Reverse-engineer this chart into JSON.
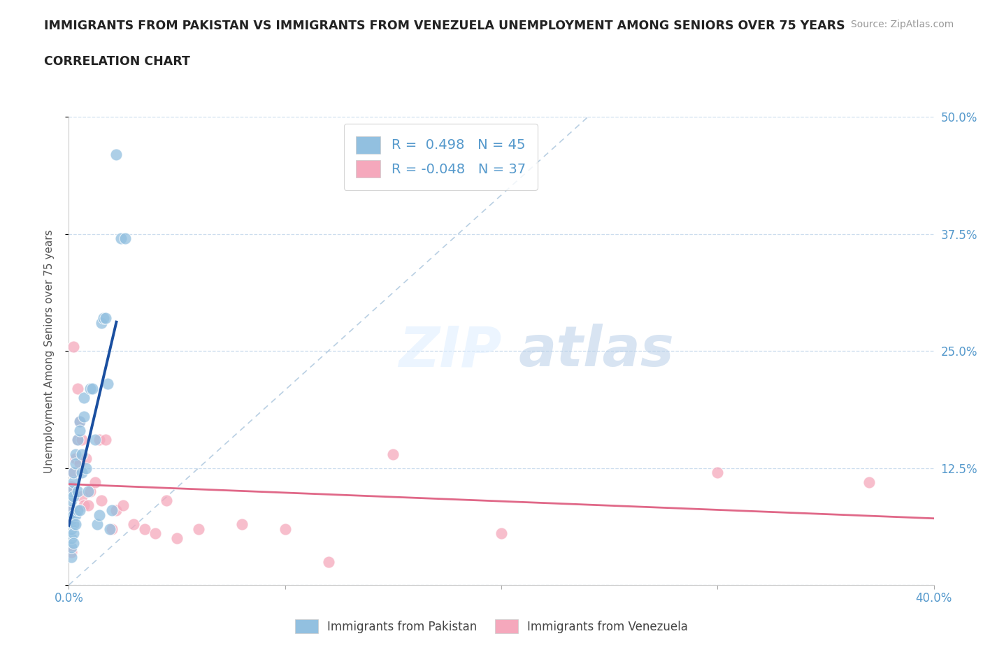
{
  "title_line1": "IMMIGRANTS FROM PAKISTAN VS IMMIGRANTS FROM VENEZUELA UNEMPLOYMENT AMONG SENIORS OVER 75 YEARS",
  "title_line2": "CORRELATION CHART",
  "source": "Source: ZipAtlas.com",
  "ylabel": "Unemployment Among Seniors over 75 years",
  "xlim": [
    0.0,
    0.4
  ],
  "ylim": [
    0.0,
    0.5
  ],
  "R_pakistan": 0.498,
  "N_pakistan": 45,
  "R_venezuela": -0.048,
  "N_venezuela": 37,
  "pakistan_color": "#92c0e0",
  "venezuela_color": "#f5a8bc",
  "pakistan_line_color": "#1a4fa0",
  "venezuela_line_color": "#e06888",
  "diagonal_color": "#a8c4dc",
  "tick_color": "#5599cc",
  "pakistan_x": [
    0.001,
    0.001,
    0.001,
    0.001,
    0.001,
    0.001,
    0.001,
    0.001,
    0.002,
    0.002,
    0.002,
    0.002,
    0.002,
    0.002,
    0.002,
    0.003,
    0.003,
    0.003,
    0.003,
    0.004,
    0.004,
    0.004,
    0.005,
    0.005,
    0.005,
    0.006,
    0.006,
    0.007,
    0.007,
    0.008,
    0.009,
    0.01,
    0.011,
    0.012,
    0.013,
    0.014,
    0.015,
    0.016,
    0.017,
    0.018,
    0.019,
    0.02,
    0.022,
    0.024,
    0.026
  ],
  "pakistan_y": [
    0.03,
    0.04,
    0.05,
    0.06,
    0.07,
    0.08,
    0.09,
    0.1,
    0.11,
    0.12,
    0.095,
    0.075,
    0.065,
    0.055,
    0.045,
    0.14,
    0.13,
    0.075,
    0.065,
    0.08,
    0.1,
    0.155,
    0.175,
    0.165,
    0.08,
    0.14,
    0.12,
    0.18,
    0.2,
    0.125,
    0.1,
    0.21,
    0.21,
    0.155,
    0.065,
    0.075,
    0.28,
    0.285,
    0.285,
    0.215,
    0.06,
    0.08,
    0.46,
    0.37,
    0.37
  ],
  "venezuela_x": [
    0.001,
    0.001,
    0.001,
    0.002,
    0.002,
    0.003,
    0.003,
    0.004,
    0.004,
    0.005,
    0.005,
    0.006,
    0.006,
    0.007,
    0.008,
    0.009,
    0.01,
    0.012,
    0.014,
    0.015,
    0.017,
    0.02,
    0.022,
    0.025,
    0.03,
    0.035,
    0.04,
    0.045,
    0.05,
    0.06,
    0.08,
    0.1,
    0.12,
    0.15,
    0.2,
    0.3,
    0.37
  ],
  "venezuela_y": [
    0.035,
    0.08,
    0.105,
    0.12,
    0.255,
    0.08,
    0.135,
    0.155,
    0.21,
    0.13,
    0.175,
    0.155,
    0.095,
    0.085,
    0.135,
    0.085,
    0.1,
    0.11,
    0.155,
    0.09,
    0.155,
    0.06,
    0.08,
    0.085,
    0.065,
    0.06,
    0.055,
    0.09,
    0.05,
    0.06,
    0.065,
    0.06,
    0.025,
    0.14,
    0.055,
    0.12,
    0.11
  ]
}
